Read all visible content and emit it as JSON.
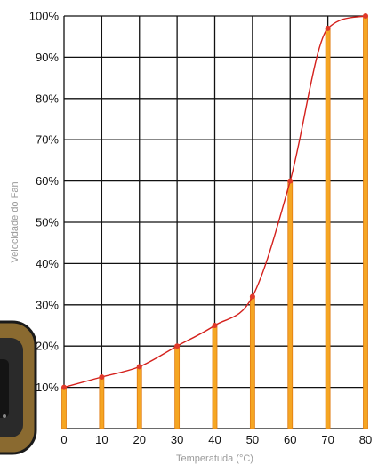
{
  "chart_data": {
    "type": "line",
    "title": "",
    "xlabel": "Temperatuda (°C)",
    "ylabel": "Velocidade do Fan",
    "x": [
      0,
      10,
      20,
      30,
      40,
      50,
      60,
      70,
      80
    ],
    "series": [
      {
        "values": [
          10,
          12.5,
          15,
          20,
          25,
          32,
          60,
          97,
          100
        ]
      }
    ],
    "xlim": [
      0,
      80
    ],
    "ylim": [
      0,
      100
    ],
    "x_ticks": [
      "0",
      "10",
      "20",
      "30",
      "40",
      "50",
      "60",
      "70",
      "80"
    ],
    "y_ticks": [
      "10%",
      "20%",
      "30%",
      "40%",
      "50%",
      "60%",
      "70%",
      "80%",
      "90%",
      "100%"
    ],
    "grid": true,
    "legend": "none",
    "colors": {
      "bar_fill": "#f5a623",
      "bar_edge": "#e07a10",
      "line": "#d4201c",
      "point": "#e03a2a",
      "grid": "#111111"
    }
  },
  "widget": {
    "icon": "usb-drive-icon"
  }
}
